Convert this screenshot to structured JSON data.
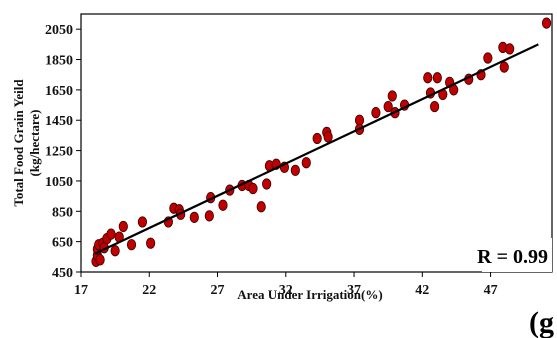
{
  "chart_data": {
    "type": "scatter",
    "title": "",
    "xlabel": "Area Under Irrigation(%)",
    "ylabel_line1": "Total Food Grain Yeild",
    "ylabel_line2": "(kg/hectare)",
    "xlim": [
      17,
      51.5
    ],
    "ylim": [
      450,
      2150
    ],
    "xticks": [
      "17",
      "22",
      "27",
      "32",
      "37",
      "42",
      "47"
    ],
    "yticks": [
      "2050",
      "1850",
      "1650",
      "1450",
      "1250",
      "1050",
      "850",
      "650",
      "450"
    ],
    "grid": false,
    "legend": "none",
    "marker_color": "#c00000",
    "marker_edge_color": "#3a0000",
    "trendline": {
      "type": "linear",
      "x": [
        18.0,
        50.5
      ],
      "y": [
        570,
        1950
      ],
      "color": "#000000"
    },
    "annotation": "R = 0.99",
    "panel_label": "(g",
    "points": [
      {
        "x": 18.1,
        "y": 520
      },
      {
        "x": 18.2,
        "y": 560
      },
      {
        "x": 18.2,
        "y": 600
      },
      {
        "x": 18.3,
        "y": 630
      },
      {
        "x": 18.4,
        "y": 530
      },
      {
        "x": 18.6,
        "y": 640
      },
      {
        "x": 18.7,
        "y": 610
      },
      {
        "x": 18.9,
        "y": 670
      },
      {
        "x": 19.2,
        "y": 700
      },
      {
        "x": 19.5,
        "y": 590
      },
      {
        "x": 19.8,
        "y": 680
      },
      {
        "x": 20.1,
        "y": 750
      },
      {
        "x": 20.7,
        "y": 630
      },
      {
        "x": 21.5,
        "y": 780
      },
      {
        "x": 22.1,
        "y": 640
      },
      {
        "x": 23.4,
        "y": 780
      },
      {
        "x": 23.8,
        "y": 870
      },
      {
        "x": 24.2,
        "y": 860
      },
      {
        "x": 24.3,
        "y": 830
      },
      {
        "x": 25.3,
        "y": 810
      },
      {
        "x": 26.4,
        "y": 820
      },
      {
        "x": 26.5,
        "y": 940
      },
      {
        "x": 27.4,
        "y": 890
      },
      {
        "x": 27.9,
        "y": 990
      },
      {
        "x": 28.8,
        "y": 1020
      },
      {
        "x": 29.3,
        "y": 1020
      },
      {
        "x": 29.6,
        "y": 1000
      },
      {
        "x": 30.2,
        "y": 880
      },
      {
        "x": 30.6,
        "y": 1030
      },
      {
        "x": 30.8,
        "y": 1150
      },
      {
        "x": 31.3,
        "y": 1160
      },
      {
        "x": 31.9,
        "y": 1140
      },
      {
        "x": 32.7,
        "y": 1120
      },
      {
        "x": 33.5,
        "y": 1170
      },
      {
        "x": 34.3,
        "y": 1330
      },
      {
        "x": 35.0,
        "y": 1370
      },
      {
        "x": 35.1,
        "y": 1340
      },
      {
        "x": 37.4,
        "y": 1450
      },
      {
        "x": 37.4,
        "y": 1390
      },
      {
        "x": 38.6,
        "y": 1500
      },
      {
        "x": 39.5,
        "y": 1540
      },
      {
        "x": 39.8,
        "y": 1610
      },
      {
        "x": 40.0,
        "y": 1500
      },
      {
        "x": 40.7,
        "y": 1550
      },
      {
        "x": 42.4,
        "y": 1730
      },
      {
        "x": 42.6,
        "y": 1630
      },
      {
        "x": 42.9,
        "y": 1540
      },
      {
        "x": 43.1,
        "y": 1730
      },
      {
        "x": 43.5,
        "y": 1620
      },
      {
        "x": 44.0,
        "y": 1700
      },
      {
        "x": 44.3,
        "y": 1650
      },
      {
        "x": 45.4,
        "y": 1720
      },
      {
        "x": 46.3,
        "y": 1750
      },
      {
        "x": 46.8,
        "y": 1860
      },
      {
        "x": 47.9,
        "y": 1930
      },
      {
        "x": 48.0,
        "y": 1800
      },
      {
        "x": 48.4,
        "y": 1920
      },
      {
        "x": 51.1,
        "y": 2090
      }
    ]
  }
}
